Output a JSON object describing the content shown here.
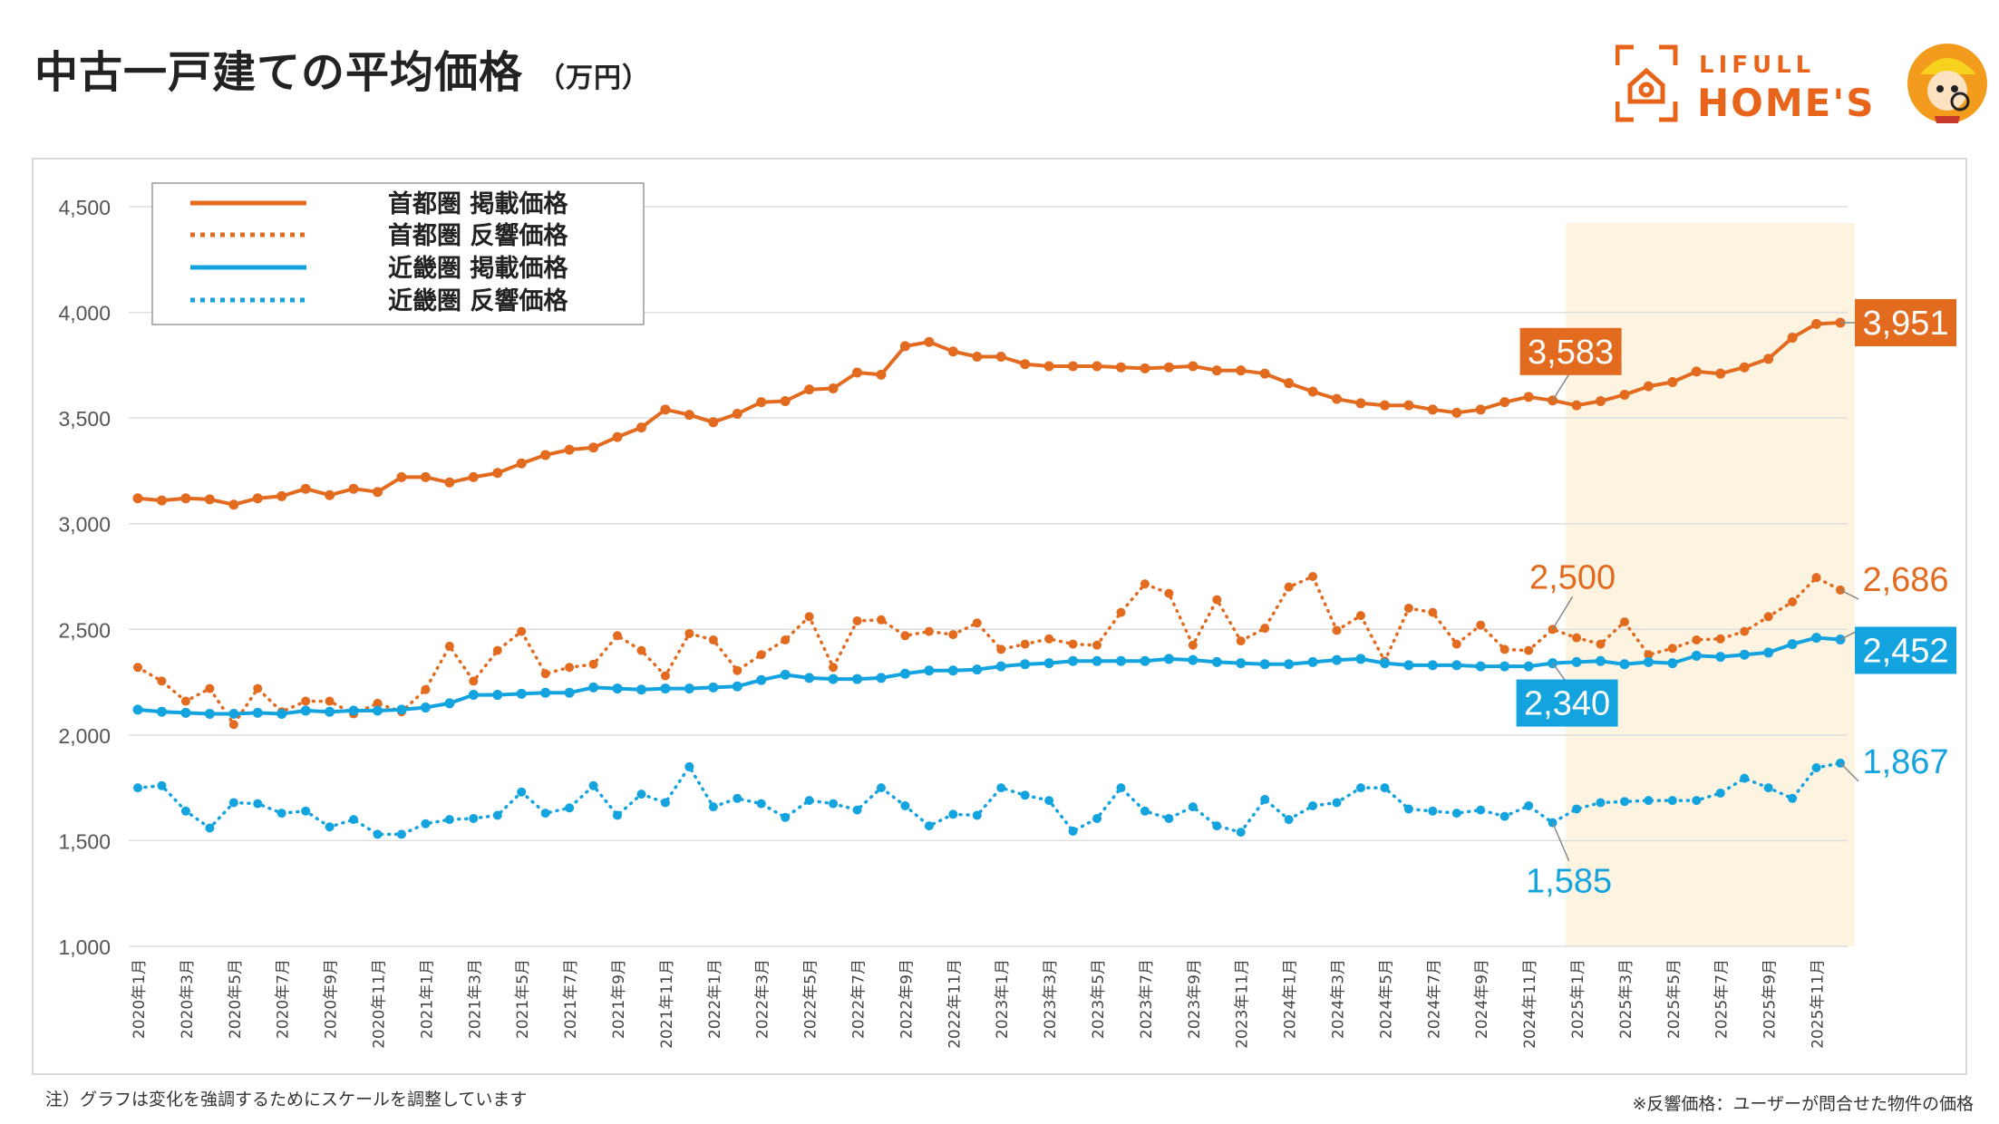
{
  "header": {
    "title": "中古一戸建ての平均価格",
    "unit": "（万円）"
  },
  "logo": {
    "line1": "LIFULL",
    "line2": "HOME'S",
    "brand_color": "#e8641b"
  },
  "notes": {
    "left": "注）グラフは変化を強調するためにスケールを調整しています",
    "right": "※反響価格：ユーザーが問合せた物件の価格"
  },
  "chart_data": {
    "type": "line",
    "ylim": [
      1000,
      4500
    ],
    "yticks": [
      1000,
      1500,
      2000,
      2500,
      3000,
      3500,
      4000,
      4500
    ],
    "ytick_labels": [
      "1,000",
      "1,500",
      "2,000",
      "2,500",
      "3,000",
      "3,500",
      "4,000",
      "4,500"
    ],
    "x_tick_labels": [
      "2020年1月",
      "2020年3月",
      "2020年5月",
      "2020年7月",
      "2020年9月",
      "2020年11月",
      "2021年1月",
      "2021年3月",
      "2021年5月",
      "2021年7月",
      "2021年9月",
      "2021年11月",
      "2022年1月",
      "2022年3月",
      "2022年5月",
      "2022年7月",
      "2022年9月",
      "2022年11月",
      "2023年1月",
      "2023年3月",
      "2023年5月",
      "2023年7月",
      "2023年9月",
      "2023年11月",
      "2024年1月",
      "2024年3月",
      "2024年5月",
      "2024年7月",
      "2024年9月",
      "2024年11月",
      "2025年1月",
      "2025年3月",
      "2025年5月",
      "2025年7月",
      "2025年9月",
      "2025年11月"
    ],
    "highlight": {
      "from_index": 60,
      "to_index": 71,
      "color": "#fdf3e1"
    },
    "series": [
      {
        "name": "首都圏 掲載価格",
        "style": "solid",
        "color": "#e26b1f",
        "values": [
          3120,
          3110,
          3120,
          3115,
          3090,
          3120,
          3130,
          3165,
          3135,
          3165,
          3150,
          3220,
          3220,
          3195,
          3220,
          3240,
          3285,
          3325,
          3350,
          3360,
          3410,
          3455,
          3540,
          3515,
          3480,
          3520,
          3575,
          3580,
          3635,
          3640,
          3715,
          3705,
          3840,
          3860,
          3815,
          3790,
          3790,
          3755,
          3745,
          3745,
          3745,
          3740,
          3735,
          3740,
          3745,
          3725,
          3725,
          3710,
          3665,
          3625,
          3590,
          3570,
          3560,
          3560,
          3540,
          3525,
          3540,
          3575,
          3600,
          3583,
          3560,
          3580,
          3610,
          3650,
          3670,
          3720,
          3710,
          3740,
          3780,
          3880,
          3945,
          3951
        ]
      },
      {
        "name": "首都圏 反響価格",
        "style": "dotted",
        "color": "#e26b1f",
        "values": [
          2320,
          2255,
          2160,
          2220,
          2050,
          2220,
          2110,
          2160,
          2160,
          2100,
          2150,
          2110,
          2215,
          2420,
          2255,
          2400,
          2490,
          2290,
          2320,
          2335,
          2470,
          2400,
          2280,
          2480,
          2450,
          2305,
          2380,
          2450,
          2560,
          2320,
          2540,
          2545,
          2470,
          2490,
          2475,
          2530,
          2405,
          2430,
          2455,
          2430,
          2425,
          2580,
          2715,
          2670,
          2425,
          2640,
          2445,
          2505,
          2700,
          2750,
          2495,
          2565,
          2350,
          2600,
          2580,
          2430,
          2520,
          2405,
          2400,
          2500,
          2460,
          2430,
          2535,
          2380,
          2410,
          2450,
          2455,
          2490,
          2560,
          2630,
          2745,
          2686
        ]
      },
      {
        "name": "近畿圏 掲載価格",
        "style": "solid",
        "color": "#13a3df",
        "values": [
          2120,
          2110,
          2105,
          2100,
          2100,
          2105,
          2100,
          2115,
          2110,
          2115,
          2115,
          2120,
          2130,
          2150,
          2190,
          2190,
          2195,
          2200,
          2200,
          2225,
          2220,
          2215,
          2220,
          2220,
          2225,
          2230,
          2260,
          2285,
          2270,
          2265,
          2265,
          2270,
          2290,
          2305,
          2305,
          2310,
          2325,
          2335,
          2340,
          2350,
          2350,
          2350,
          2350,
          2360,
          2355,
          2345,
          2340,
          2335,
          2335,
          2345,
          2355,
          2360,
          2340,
          2330,
          2330,
          2330,
          2325,
          2325,
          2325,
          2340,
          2345,
          2350,
          2335,
          2345,
          2340,
          2375,
          2370,
          2380,
          2390,
          2430,
          2460,
          2452
        ]
      },
      {
        "name": "近畿圏 反響価格",
        "style": "dotted",
        "color": "#13a3df",
        "values": [
          1750,
          1760,
          1640,
          1560,
          1680,
          1675,
          1630,
          1640,
          1565,
          1600,
          1530,
          1530,
          1580,
          1600,
          1605,
          1620,
          1730,
          1630,
          1655,
          1760,
          1620,
          1720,
          1680,
          1850,
          1660,
          1700,
          1675,
          1610,
          1690,
          1675,
          1645,
          1750,
          1665,
          1570,
          1625,
          1620,
          1750,
          1715,
          1690,
          1545,
          1605,
          1750,
          1640,
          1605,
          1660,
          1570,
          1540,
          1695,
          1600,
          1665,
          1680,
          1750,
          1750,
          1650,
          1640,
          1630,
          1645,
          1615,
          1665,
          1585,
          1650,
          1680,
          1685,
          1690,
          1690,
          1690,
          1725,
          1795,
          1750,
          1700,
          1845,
          1867
        ]
      }
    ],
    "legend": {
      "position": "top-left",
      "items": [
        "首都圏 掲載価格",
        "首都圏 反響価格",
        "近畿圏 掲載価格",
        "近畿圏 反響価格"
      ]
    },
    "annotations": [
      {
        "series": 0,
        "index": 59,
        "label": "3,583",
        "boxed": true
      },
      {
        "series": 0,
        "index": 71,
        "label": "3,951",
        "boxed": true
      },
      {
        "series": 1,
        "index": 59,
        "label": "2,500",
        "boxed": false
      },
      {
        "series": 1,
        "index": 71,
        "label": "2,686",
        "boxed": false
      },
      {
        "series": 2,
        "index": 59,
        "label": "2,340",
        "boxed": true
      },
      {
        "series": 2,
        "index": 71,
        "label": "2,452",
        "boxed": true
      },
      {
        "series": 3,
        "index": 59,
        "label": "1,585",
        "boxed": false
      },
      {
        "series": 3,
        "index": 71,
        "label": "1,867",
        "boxed": false
      }
    ]
  }
}
